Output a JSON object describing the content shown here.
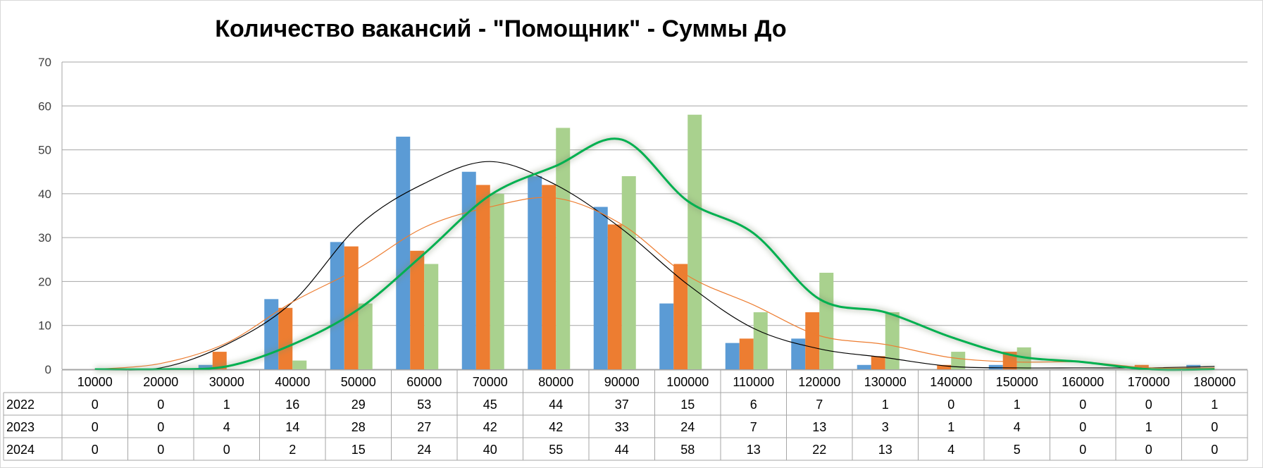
{
  "chart_data": {
    "type": "bar",
    "title": "Количество вакансий - \"Помощник\" - Суммы До",
    "ylim": [
      0,
      70
    ],
    "yticks": [
      0,
      10,
      20,
      30,
      40,
      50,
      60,
      70
    ],
    "grid": true,
    "categories": [
      "10000",
      "20000",
      "30000",
      "40000",
      "50000",
      "60000",
      "70000",
      "80000",
      "90000",
      "100000",
      "110000",
      "120000",
      "130000",
      "140000",
      "150000",
      "160000",
      "170000",
      "180000"
    ],
    "series": [
      {
        "name": "2022",
        "color": "#5b9bd5",
        "values": [
          0,
          0,
          1,
          16,
          29,
          53,
          45,
          44,
          37,
          15,
          6,
          7,
          1,
          0,
          1,
          0,
          0,
          1
        ]
      },
      {
        "name": "2023",
        "color": "#ed7d31",
        "values": [
          0,
          0,
          4,
          14,
          28,
          27,
          42,
          42,
          33,
          24,
          7,
          13,
          3,
          1,
          4,
          0,
          1,
          0
        ]
      },
      {
        "name": "2024",
        "color": "#a9d18e",
        "values": [
          0,
          0,
          0,
          2,
          15,
          24,
          40,
          55,
          44,
          58,
          13,
          22,
          13,
          4,
          5,
          0,
          0,
          0
        ]
      }
    ],
    "trendlines": [
      {
        "series": "2022",
        "color": "#000000"
      },
      {
        "series": "2023",
        "color": "#ed7d31"
      },
      {
        "series": "2024",
        "color": "#00b050"
      }
    ],
    "data_table": true
  }
}
